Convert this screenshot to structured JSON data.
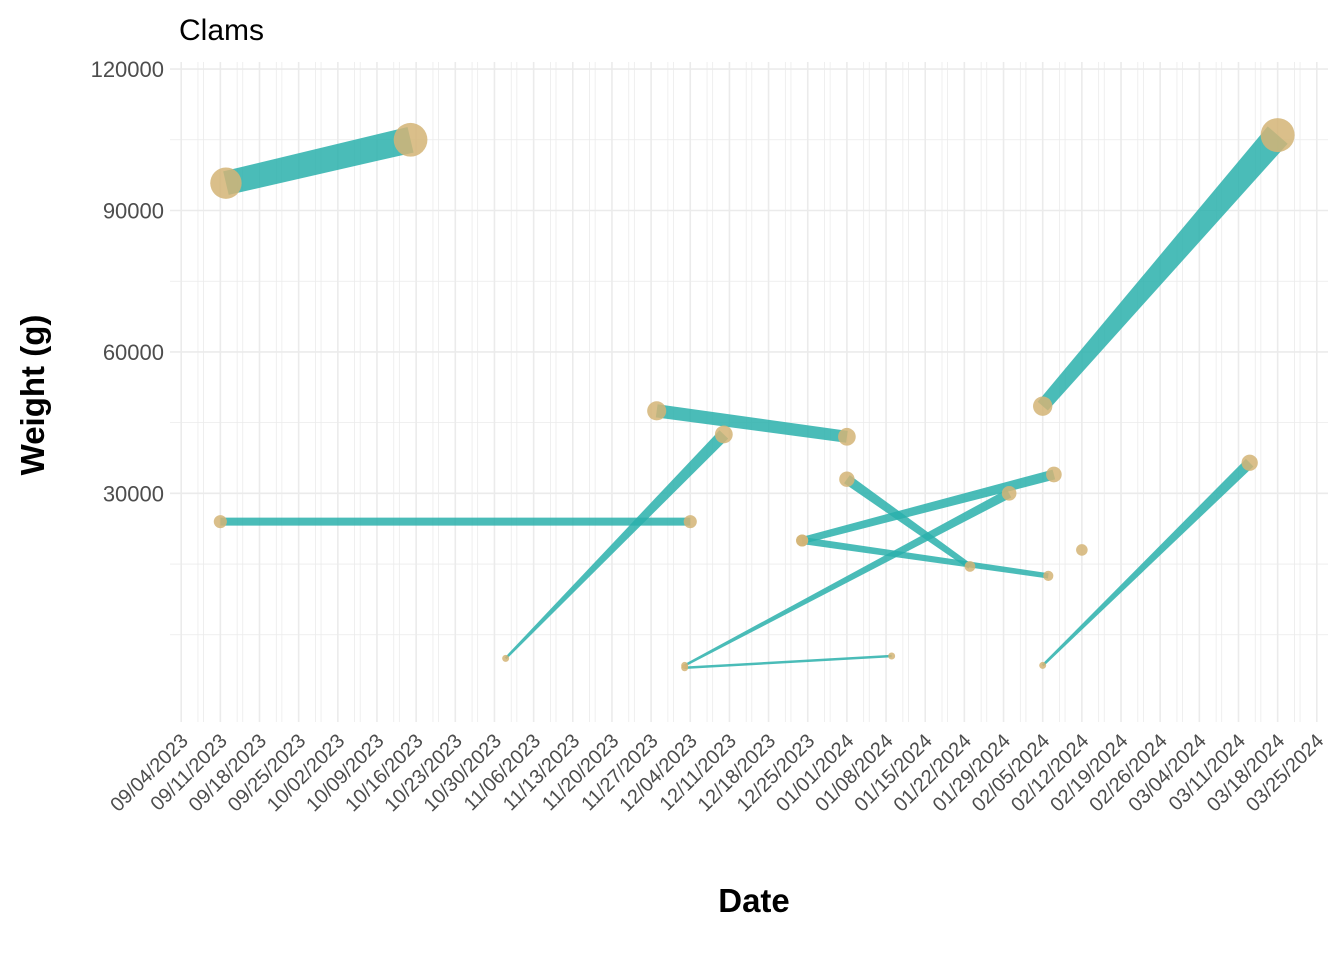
{
  "chart_data": {
    "type": "line",
    "title": "Clams",
    "xlabel": "Date",
    "ylabel": "Weight (g)",
    "ylim": [
      -18500,
      121500
    ],
    "xlim": [
      "2023-09-02",
      "2024-03-27"
    ],
    "yticks": [
      30000,
      60000,
      90000,
      120000
    ],
    "xticks": [
      "09/04/2023",
      "09/11/2023",
      "09/18/2023",
      "09/25/2023",
      "10/02/2023",
      "10/09/2023",
      "10/16/2023",
      "10/23/2023",
      "10/30/2023",
      "11/06/2023",
      "11/13/2023",
      "11/20/2023",
      "11/27/2023",
      "12/04/2023",
      "12/11/2023",
      "12/18/2023",
      "12/25/2023",
      "01/01/2024",
      "01/08/2024",
      "01/15/2024",
      "01/22/2024",
      "01/29/2024",
      "02/05/2024",
      "02/12/2024",
      "02/19/2024",
      "02/26/2024",
      "03/04/2024",
      "03/11/2024",
      "03/18/2024",
      "03/25/2024"
    ],
    "grid": true,
    "legend": "none",
    "colors": {
      "line": "#2ab0ac",
      "point": "#d4b476"
    },
    "segments": [
      {
        "x": [
          "2023-09-12",
          "2023-10-15"
        ],
        "y": [
          95800,
          105000
        ]
      },
      {
        "x": [
          "2023-09-11",
          "2023-12-04"
        ],
        "y": [
          24000,
          24000
        ]
      },
      {
        "x": [
          "2023-11-01",
          "2023-12-10"
        ],
        "y": [
          -5000,
          42500
        ]
      },
      {
        "x": [
          "2023-11-28",
          "2024-01-01"
        ],
        "y": [
          47500,
          42000
        ]
      },
      {
        "x": [
          "2023-12-03",
          "2024-01-09"
        ],
        "y": [
          -7000,
          -4500
        ]
      },
      {
        "x": [
          "2023-12-03",
          "2024-01-30"
        ],
        "y": [
          -6500,
          30000
        ]
      },
      {
        "x": [
          "2023-12-24",
          "2024-02-07"
        ],
        "y": [
          20000,
          34000
        ]
      },
      {
        "x": [
          "2023-12-24",
          "2024-02-06"
        ],
        "y": [
          20000,
          12500
        ]
      },
      {
        "x": [
          "2024-01-01",
          "2024-01-23"
        ],
        "y": [
          33000,
          14500
        ]
      },
      {
        "x": [
          "2024-02-05",
          "2024-03-18"
        ],
        "y": [
          48500,
          106000
        ]
      },
      {
        "x": [
          "2024-02-05",
          "2024-03-13"
        ],
        "y": [
          -6500,
          36500
        ]
      }
    ],
    "isolated_points": [
      {
        "x": "2024-02-12",
        "y": 18000
      }
    ]
  }
}
